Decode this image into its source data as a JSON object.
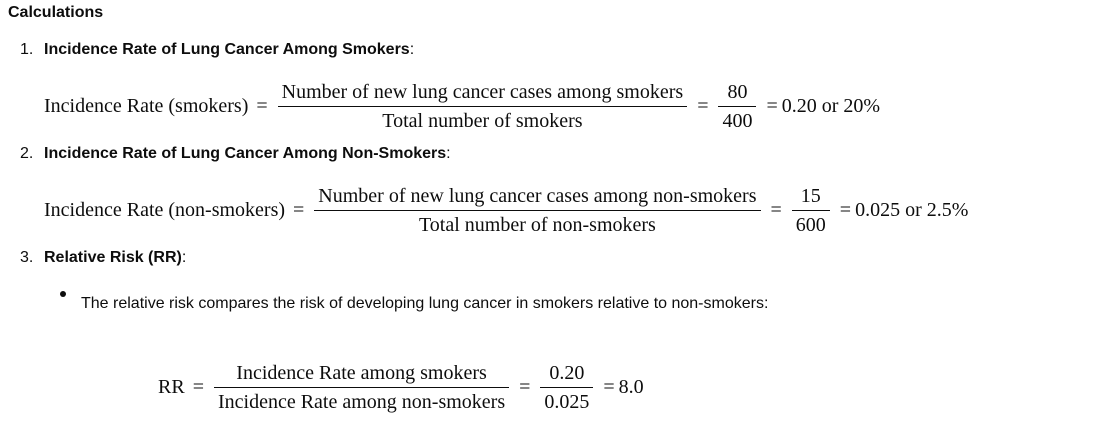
{
  "heading": "Calculations",
  "items": [
    {
      "num": "1.",
      "title": "Incidence Rate of Lung Cancer Among Smokers",
      "suffix": ":"
    },
    {
      "num": "2.",
      "title": "Incidence Rate of Lung Cancer Among Non-Smokers",
      "suffix": ":"
    },
    {
      "num": "3.",
      "title": "Relative Risk (RR)",
      "suffix": ":"
    }
  ],
  "eq1": {
    "lhs": "Incidence Rate (smokers)",
    "num": "Number of new lung cancer cases among smokers",
    "den": "Total number of smokers",
    "vnum": "80",
    "vden": "400",
    "result": "0.20 or 20%"
  },
  "eq2": {
    "lhs": "Incidence Rate (non-smokers)",
    "num": "Number of new lung cancer cases among non-smokers",
    "den": "Total number of non-smokers",
    "vnum": "15",
    "vden": "600",
    "result": "0.025 or 2.5%"
  },
  "bullet": "The relative risk compares the risk of developing lung cancer in smokers relative to non-smokers:",
  "eq3": {
    "lhs": "RR",
    "num": "Incidence Rate among smokers",
    "den": "Incidence Rate among non-smokers",
    "vnum": "0.20",
    "vden": "0.025",
    "result": "8.0"
  },
  "symbols": {
    "eq": "="
  }
}
